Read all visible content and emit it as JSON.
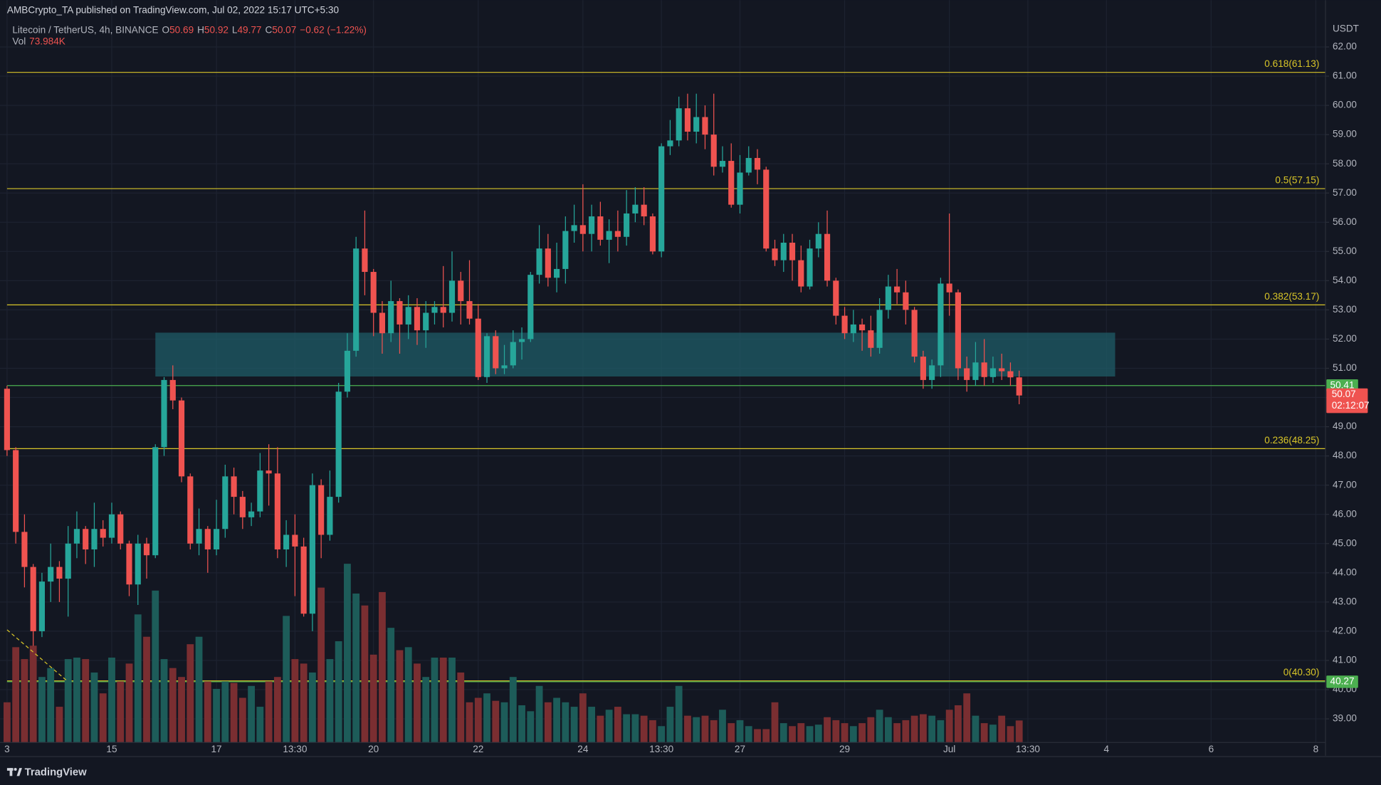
{
  "chart_data": {
    "type": "candlestick",
    "publisher": "AMBCrypto_TA published on TradingView.com, Jul 02, 2022 15:17 UTC+5:30",
    "title": "Litecoin / TetherUS, 4h, BINANCE",
    "ohlc_labels": [
      "O",
      "H",
      "L",
      "C"
    ],
    "change_label": "−0.62 (−1.22%)",
    "volume_name": "Vol",
    "volume_label": "73.984K",
    "currency": "USDT",
    "footer": "TradingView",
    "countdown": "02:12:07",
    "up_color": "#26a69a",
    "down_color": "#ef5350",
    "volume_up_color": "#1d5c59",
    "volume_down_color": "#7a2e31",
    "grid": true,
    "categories": [
      "3",
      null,
      null,
      null,
      null,
      null,
      null,
      null,
      null,
      null,
      null,
      null,
      "15",
      null,
      null,
      null,
      null,
      null,
      null,
      null,
      null,
      null,
      null,
      null,
      "17",
      null,
      null,
      null,
      null,
      null,
      null,
      null,
      null,
      "13:30",
      null,
      null,
      null,
      null,
      null,
      null,
      null,
      null,
      "20",
      null,
      null,
      null,
      null,
      null,
      null,
      null,
      null,
      null,
      null,
      null,
      "22",
      null,
      null,
      null,
      null,
      null,
      null,
      null,
      null,
      null,
      null,
      null,
      "24",
      null,
      null,
      null,
      null,
      null,
      null,
      null,
      null,
      "13:30",
      null,
      null,
      null,
      null,
      null,
      null,
      null,
      null,
      "27",
      null,
      null,
      null,
      null,
      null,
      null,
      null,
      null,
      null,
      null,
      null,
      "29",
      null,
      null,
      null,
      null,
      null,
      null,
      null,
      null,
      null,
      null,
      null,
      "Jul",
      null,
      null,
      null,
      null,
      null,
      null,
      null,
      null,
      "13:30",
      null,
      null,
      null,
      null,
      null,
      null,
      null,
      null,
      "4",
      null,
      null,
      null,
      null,
      null,
      null,
      null,
      null,
      null,
      null,
      null,
      "6",
      null,
      null,
      null,
      null,
      null,
      null,
      null,
      null,
      null,
      null,
      null,
      "8"
    ],
    "open": [
      50.3,
      48.2,
      45.4,
      44.2,
      42.0,
      43.7,
      44.2,
      43.8,
      45.0,
      45.5,
      44.8,
      45.5,
      45.2,
      46.0,
      45.0,
      43.6,
      45.0,
      44.6,
      48.3,
      50.6,
      49.9,
      47.3,
      45.0,
      45.5,
      44.8,
      45.5,
      47.3,
      46.6,
      45.9,
      46.1,
      47.5,
      47.4,
      44.8,
      45.3,
      44.9,
      42.6,
      47.0,
      45.3,
      46.6,
      50.2,
      51.6,
      55.1,
      54.3,
      52.9,
      52.2,
      53.3,
      52.5,
      53.1,
      52.3,
      52.9,
      53.1,
      52.9,
      54.0,
      53.3,
      52.7,
      50.7,
      52.1,
      51.0,
      51.1,
      51.9,
      52.0,
      54.2,
      55.1,
      54.1,
      54.4,
      55.7,
      55.9,
      55.6,
      56.2,
      55.4,
      55.7,
      55.5,
      56.3,
      56.6,
      56.2,
      55.0,
      58.6,
      58.8,
      59.9,
      59.1,
      59.6,
      59.0,
      57.9,
      58.1,
      56.6,
      57.7,
      58.2,
      57.8,
      55.1,
      54.7,
      55.3,
      54.7,
      53.8,
      55.1,
      55.6,
      54.0,
      52.8,
      52.2,
      52.5,
      52.3,
      51.7,
      53.0,
      53.8,
      53.6,
      53.0,
      51.4,
      50.6,
      51.1,
      53.9,
      53.6,
      51.0,
      50.6,
      51.2,
      50.7,
      51.0,
      50.9,
      50.69,
      null,
      null,
      null,
      null,
      null,
      null,
      null,
      null,
      null,
      null,
      null,
      null,
      null,
      null,
      null,
      null,
      null,
      null,
      null,
      null,
      null,
      null,
      null,
      null,
      null,
      null,
      null,
      null,
      null,
      null,
      null,
      null,
      null,
      null
    ],
    "high": [
      50.4,
      48.3,
      46.0,
      44.3,
      44.0,
      45.0,
      44.4,
      45.6,
      46.1,
      45.6,
      46.4,
      45.8,
      46.4,
      46.1,
      45.1,
      45.3,
      45.2,
      48.4,
      50.7,
      51.1,
      50.0,
      47.4,
      46.2,
      45.6,
      46.5,
      47.7,
      47.6,
      46.8,
      46.4,
      48.1,
      48.4,
      48.3,
      45.8,
      46.0,
      45.2,
      47.4,
      47.2,
      47.5,
      50.5,
      52.2,
      55.5,
      56.4,
      54.4,
      53.3,
      54.0,
      53.4,
      53.5,
      53.4,
      53.3,
      53.3,
      54.5,
      55.0,
      54.3,
      54.7,
      53.2,
      52.2,
      52.3,
      51.8,
      52.3,
      52.4,
      54.3,
      55.9,
      55.6,
      55.3,
      56.2,
      56.6,
      57.3,
      56.6,
      56.7,
      56.1,
      56.4,
      57.1,
      57.2,
      57.2,
      56.3,
      58.7,
      59.5,
      60.3,
      60.4,
      60.4,
      60.0,
      60.4,
      58.6,
      58.7,
      58.3,
      58.6,
      58.5,
      57.9,
      55.4,
      55.6,
      55.6,
      55.2,
      55.4,
      56.0,
      56.4,
      54.1,
      53.1,
      53.0,
      52.7,
      52.8,
      53.4,
      54.2,
      54.4,
      54.0,
      53.1,
      51.6,
      51.3,
      54.1,
      56.3,
      53.7,
      51.4,
      51.9,
      52.0,
      51.4,
      51.5,
      51.2,
      50.92,
      null,
      null,
      null,
      null,
      null,
      null,
      null,
      null,
      null,
      null,
      null,
      null,
      null,
      null,
      null,
      null,
      null,
      null,
      null,
      null,
      null,
      null,
      null,
      null,
      null,
      null,
      null,
      null,
      null,
      null,
      null,
      null,
      null,
      null
    ],
    "low": [
      48.0,
      45.0,
      43.5,
      41.5,
      41.8,
      43.0,
      43.0,
      42.5,
      44.5,
      44.3,
      44.2,
      44.9,
      45.0,
      44.8,
      43.2,
      42.9,
      43.8,
      44.5,
      48.0,
      49.6,
      47.1,
      44.8,
      44.6,
      44.0,
      44.6,
      45.2,
      46.0,
      45.5,
      45.6,
      45.9,
      46.3,
      44.5,
      44.2,
      43.2,
      42.5,
      42.0,
      44.5,
      45.1,
      46.4,
      50.0,
      51.4,
      53.5,
      52.1,
      51.5,
      51.9,
      51.5,
      52.0,
      51.8,
      51.7,
      52.5,
      52.4,
      52.6,
      52.5,
      52.5,
      50.6,
      50.5,
      50.8,
      50.8,
      51.0,
      51.3,
      51.9,
      53.9,
      53.8,
      53.6,
      53.9,
      55.3,
      55.0,
      55.0,
      55.2,
      54.6,
      55.0,
      55.2,
      56.0,
      55.9,
      54.9,
      54.8,
      58.3,
      58.6,
      58.8,
      58.7,
      58.5,
      57.6,
      57.7,
      56.5,
      56.3,
      57.6,
      57.3,
      55.0,
      54.5,
      54.3,
      54.0,
      53.6,
      53.7,
      54.8,
      53.8,
      52.5,
      52.0,
      51.9,
      51.6,
      51.4,
      51.5,
      52.7,
      53.2,
      52.5,
      51.2,
      50.3,
      50.3,
      50.7,
      52.8,
      50.6,
      50.2,
      50.4,
      50.4,
      50.5,
      50.6,
      50.4,
      49.77,
      null,
      null,
      null,
      null,
      null,
      null,
      null,
      null,
      null,
      null,
      null,
      null,
      null,
      null,
      null,
      null,
      null,
      null,
      null,
      null,
      null,
      null,
      null,
      null,
      null,
      null,
      null,
      null,
      null,
      null,
      null,
      null,
      null,
      null
    ],
    "close": [
      48.2,
      45.4,
      44.2,
      42.0,
      43.7,
      44.2,
      43.8,
      45.0,
      45.5,
      44.8,
      45.5,
      45.2,
      46.0,
      45.0,
      43.6,
      45.0,
      44.6,
      48.3,
      50.6,
      49.9,
      47.3,
      45.0,
      45.5,
      44.8,
      45.5,
      47.3,
      46.6,
      45.9,
      46.1,
      47.5,
      47.4,
      44.8,
      45.3,
      44.9,
      42.6,
      47.0,
      45.3,
      46.6,
      50.2,
      51.6,
      55.1,
      54.3,
      52.9,
      52.2,
      53.3,
      52.5,
      53.1,
      52.3,
      52.9,
      53.1,
      52.9,
      54.0,
      53.3,
      52.7,
      50.7,
      52.1,
      51.0,
      51.1,
      51.9,
      52.0,
      54.2,
      55.1,
      54.1,
      54.4,
      55.7,
      55.9,
      55.6,
      56.2,
      55.4,
      55.7,
      55.5,
      56.3,
      56.6,
      56.2,
      55.0,
      58.6,
      58.8,
      59.9,
      59.1,
      59.6,
      59.0,
      57.9,
      58.1,
      56.6,
      57.7,
      58.2,
      57.8,
      55.1,
      54.7,
      55.3,
      54.7,
      53.8,
      55.1,
      55.6,
      54.0,
      52.8,
      52.2,
      52.5,
      52.3,
      51.7,
      53.0,
      53.8,
      53.6,
      53.0,
      51.4,
      50.6,
      51.1,
      53.9,
      53.6,
      51.0,
      50.6,
      51.2,
      50.7,
      51.0,
      50.9,
      50.69,
      50.07,
      null,
      null,
      null,
      null,
      null,
      null,
      null,
      null,
      null,
      null,
      null,
      null,
      null,
      null,
      null,
      null,
      null,
      null,
      null,
      null,
      null,
      null,
      null,
      null,
      null,
      null,
      null,
      null,
      null,
      null,
      null,
      null,
      null,
      null
    ],
    "volume": [
      135,
      320,
      280,
      325,
      220,
      250,
      120,
      280,
      285,
      280,
      235,
      165,
      285,
      205,
      265,
      430,
      355,
      510,
      280,
      250,
      220,
      330,
      355,
      205,
      180,
      205,
      200,
      150,
      190,
      120,
      205,
      220,
      425,
      280,
      265,
      235,
      520,
      280,
      340,
      600,
      500,
      460,
      295,
      505,
      385,
      310,
      320,
      265,
      220,
      285,
      285,
      285,
      235,
      135,
      150,
      165,
      140,
      135,
      220,
      125,
      105,
      190,
      135,
      150,
      135,
      120,
      165,
      120,
      90,
      110,
      120,
      95,
      95,
      90,
      75,
      55,
      120,
      190,
      90,
      85,
      90,
      75,
      110,
      65,
      75,
      55,
      45,
      45,
      135,
      65,
      55,
      65,
      55,
      60,
      85,
      75,
      65,
      55,
      65,
      85,
      110,
      85,
      65,
      75,
      90,
      95,
      90,
      75,
      110,
      125,
      165,
      90,
      65,
      60,
      90,
      55,
      73.984,
      null,
      null,
      null,
      null,
      null,
      null,
      null,
      null,
      null,
      null,
      null,
      null,
      null,
      null,
      null,
      null,
      null,
      null,
      null,
      null,
      null,
      null,
      null,
      null,
      null,
      null,
      null,
      null,
      null,
      null,
      null,
      null,
      null,
      null
    ],
    "ylim": [
      38.19,
      63.6
    ],
    "yticks": [
      {
        "value": 39,
        "label": "39.00"
      },
      {
        "value": 40,
        "label": "40.00"
      },
      {
        "value": 41,
        "label": "41.00"
      },
      {
        "value": 42,
        "label": "42.00"
      },
      {
        "value": 43,
        "label": "43.00"
      },
      {
        "value": 44,
        "label": "44.00"
      },
      {
        "value": 45,
        "label": "45.00"
      },
      {
        "value": 46,
        "label": "46.00"
      },
      {
        "value": 47,
        "label": "47.00"
      },
      {
        "value": 48,
        "label": "48.00"
      },
      {
        "value": 49,
        "label": "49.00"
      },
      {
        "value": 50,
        "label": "50.00"
      },
      {
        "value": 51,
        "label": "51.00"
      },
      {
        "value": 52,
        "label": "52.00"
      },
      {
        "value": 53,
        "label": "53.00"
      },
      {
        "value": 54,
        "label": "54.00"
      },
      {
        "value": 55,
        "label": "55.00"
      },
      {
        "value": 56,
        "label": "56.00"
      },
      {
        "value": 57,
        "label": "57.00"
      },
      {
        "value": 58,
        "label": "58.00"
      },
      {
        "value": 59,
        "label": "59.00"
      },
      {
        "value": 60,
        "label": "60.00"
      },
      {
        "value": 61,
        "label": "61.00"
      },
      {
        "value": 62,
        "label": "62.00"
      }
    ],
    "fib_color": "#d8c528",
    "fib_levels": [
      {
        "label": "0.618(61.13)",
        "value": 61.13
      },
      {
        "label": "0.5(57.15)",
        "value": 57.15
      },
      {
        "label": "0.382(53.17)",
        "value": 53.17
      },
      {
        "label": "0.236(48.25)",
        "value": 48.25
      },
      {
        "label": "0(40.30)",
        "value": 40.3
      }
    ],
    "price_lines": [
      {
        "value": 50.41,
        "color": "#4caf50"
      },
      {
        "value": 40.27,
        "color": "#4caf50"
      }
    ],
    "zone": {
      "low": 50.72,
      "high": 52.22,
      "start": 17,
      "end": 127,
      "color": "#1f5c67"
    }
  }
}
